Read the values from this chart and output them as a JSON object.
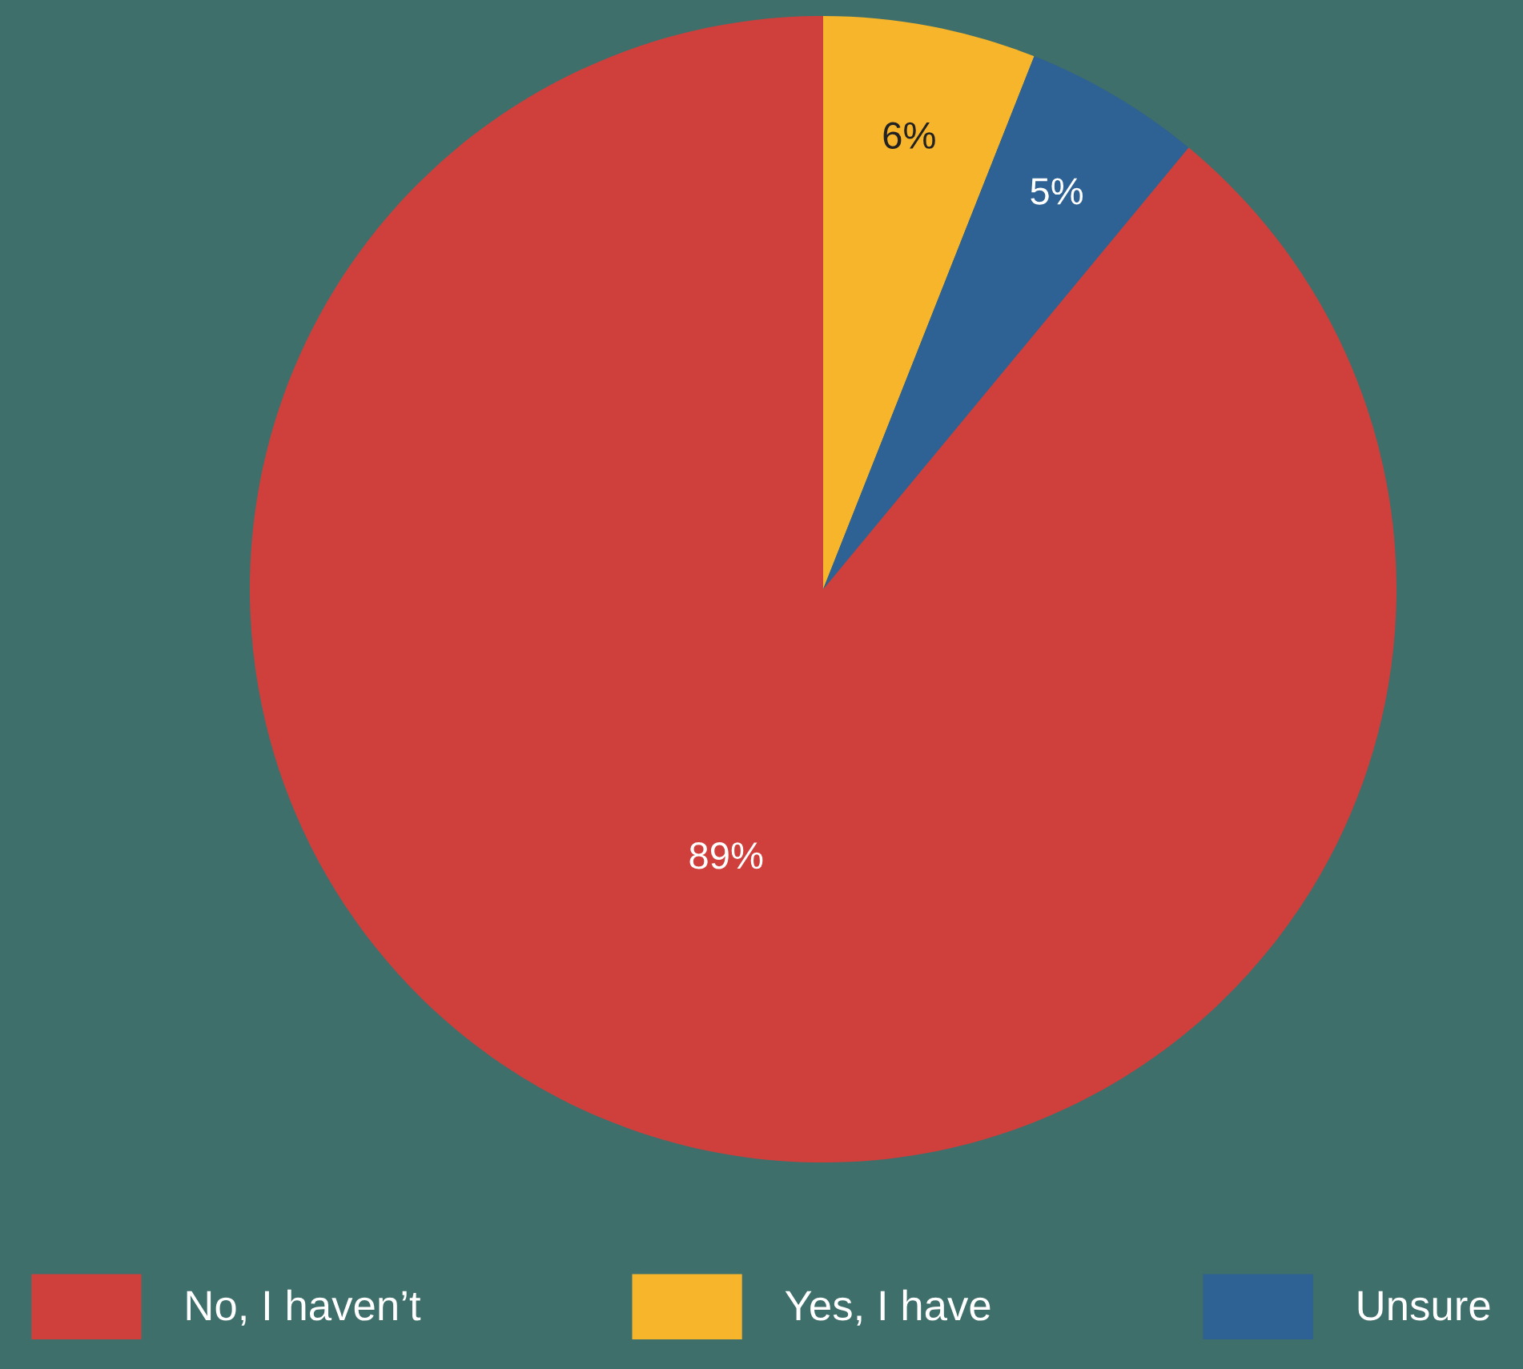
{
  "chart_data": {
    "type": "pie",
    "categories": [
      "No, I haven’t",
      "Yes, I have",
      "Unsure"
    ],
    "values": [
      89,
      6,
      5
    ],
    "colors": [
      "#cf403d",
      "#f7b52c",
      "#2e6194"
    ],
    "value_labels": [
      "89%",
      "6%",
      "5%"
    ],
    "legend": "bottom"
  }
}
